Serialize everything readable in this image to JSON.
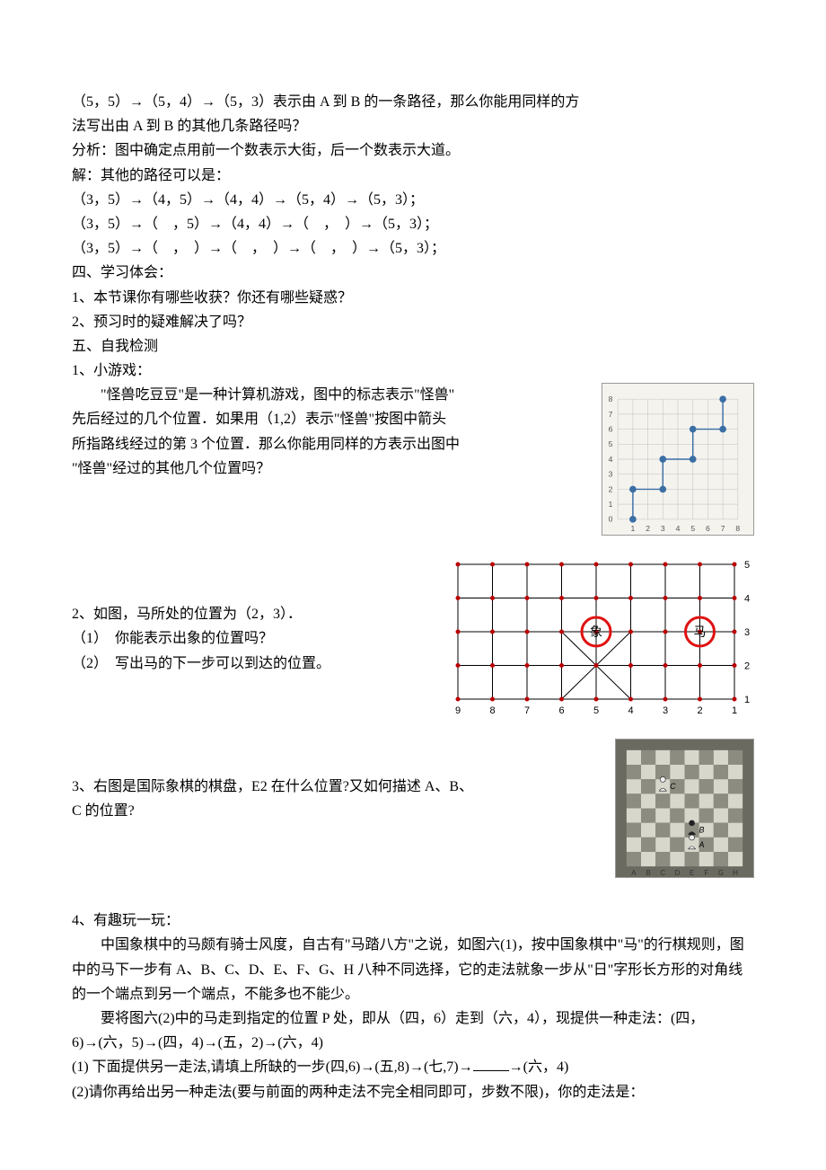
{
  "intro": {
    "l1": "（5，5）→（5，4）→（5，3）表示由 A 到 B 的一条路径，那么你能用同样的方",
    "l2": "法写出由 A 到 B 的其他几条路径吗？",
    "l3": "分析：图中确定点用前一个数表示大街，后一个数表示大道。",
    "l4": "解：其他的路径可以是：",
    "l5": "（3，5）→（4，5）→（4，4）→（5，4）→（5，3）；",
    "l6": "（3，5）→（　，5）→（4，4）→（　，　）→（5，3）；",
    "l7": "（3，5）→（　，　）→（　，　）→（　，　）→（5，3）；"
  },
  "s4": {
    "title": "四、学习体会：",
    "q1": "1、本节课你有哪些收获？你还有哪些疑惑？",
    "q2": "2、预习时的疑难解决了吗？"
  },
  "s5": {
    "title": "五、自我检测",
    "q1_title": "1、小游戏：",
    "q1_l1": "　　\"怪兽吃豆豆\"是一种计算机游戏，图中的标志表示\"怪兽\"",
    "q1_l2": "先后经过的几个位置．如果用（1,2）表示\"怪兽\"按图中箭头",
    "q1_l3": "所指路线经过的第 3 个位置．那么你能用同样的方表示出图中",
    "q1_l4": "\"怪兽\"经过的其他几个位置吗？",
    "q2_title": "2、如图，马所处的位置为（2，3）．",
    "q2_l1": "（1）　你能表示出象的位置吗？",
    "q2_l2": "（2）　写出马的下一步可以到达的位置。",
    "q3_l1": "3、右图是国际象棋的棋盘，E2 在什么位置?又如何描述 A、B、",
    "q3_l2": "C 的位置?",
    "q4_title": "4、有趣玩一玩：",
    "q4_p1": "中国象棋中的马颇有骑士风度，自古有\"马踏八方\"之说，如图六(1)，按中国象棋中\"马\"的行棋规则，图中的马下一步有 A、B、C、D、E、F、G、H 八种不同选择，它的走法就象一步从\"日\"字形长方形的对角线的一个端点到另一个端点，不能多也不能少。",
    "q4_p2": "要将图六(2)中的马走到指定的位置 P 处，即从（四，6）走到（六，4），现提供一种走法：(四，6)→(六，5)→(四，4)→(五，2)→(六，4)",
    "q4_sub1a": "(1) 下面提供另一走法,请填上所缺的一步(四,6)→(五,8)→(七,7)→",
    "q4_sub1b": "→(六，4)",
    "q4_sub1_indent": "4)",
    "q4_sub2": "(2)请你再给出另一种走法(要与前面的两种走法不完全相同即可，步数不限)，你的走法是："
  },
  "fig1": {
    "grid_min": 0,
    "grid_max": 8,
    "xlabels": [
      "1",
      "2",
      "3",
      "4",
      "5",
      "6",
      "7",
      "8"
    ],
    "ylabels": [
      "0",
      "1",
      "2",
      "3",
      "4",
      "5",
      "6",
      "7",
      "8"
    ],
    "axis_color": "#888",
    "grid_color": "#ccc",
    "point_color": "#3a6ea5",
    "points": [
      [
        1,
        0
      ],
      [
        1,
        2
      ],
      [
        3,
        2
      ],
      [
        3,
        4
      ],
      [
        5,
        4
      ],
      [
        5,
        6
      ],
      [
        7,
        6
      ],
      [
        7,
        8
      ]
    ],
    "bg": "#f4f3ee"
  },
  "fig2": {
    "cols": 9,
    "rows": 5,
    "xlabels": [
      "9",
      "8",
      "7",
      "6",
      "5",
      "4",
      "3",
      "2",
      "1"
    ],
    "ylabels": [
      "1",
      "2",
      "3",
      "4",
      "5"
    ],
    "line_color": "#000",
    "point_color": "#b00",
    "circle_color": "#e01010",
    "xiang_label": "象",
    "xiang_pos": [
      5,
      3
    ],
    "ma_label": "马",
    "ma_pos": [
      2,
      3
    ]
  },
  "fig3": {
    "size": 8,
    "light": "#d8d7cc",
    "dark": "#8d8c80",
    "border": "#6b6a60",
    "pieces": {
      "A": {
        "col": 4,
        "row": 2,
        "label": "A"
      },
      "B": {
        "col": 4,
        "row": 3,
        "label": "B"
      },
      "C": {
        "col": 2,
        "row": 6,
        "label": "C"
      }
    },
    "files": [
      "A",
      "B",
      "C",
      "D",
      "E",
      "F",
      "G",
      "H"
    ]
  }
}
